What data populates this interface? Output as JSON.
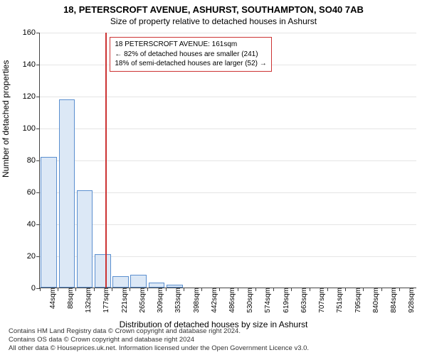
{
  "title": "18, PETERSCROFT AVENUE, ASHURST, SOUTHAMPTON, SO40 7AB",
  "subtitle": "Size of property relative to detached houses in Ashurst",
  "ylabel": "Number of detached properties",
  "xlabel": "Distribution of detached houses by size in Ashurst",
  "footer1": "Contains HM Land Registry data © Crown copyright and database right 2024.",
  "footer2": "Contains OS data © Crown copyright and database right 2024",
  "footer3": "All other data © Houseprices.uk.net. Information licensed under the Open Government Licence v3.0.",
  "chart": {
    "type": "bar",
    "ylim": [
      0,
      160
    ],
    "ytick_step": 20,
    "categories": [
      "44sqm",
      "88sqm",
      "132sqm",
      "177sqm",
      "221sqm",
      "265sqm",
      "309sqm",
      "353sqm",
      "398sqm",
      "442sqm",
      "486sqm",
      "530sqm",
      "574sqm",
      "619sqm",
      "663sqm",
      "707sqm",
      "751sqm",
      "795sqm",
      "840sqm",
      "884sqm",
      "928sqm"
    ],
    "values": [
      82,
      118,
      61,
      21,
      7,
      8,
      3,
      2,
      0,
      0,
      0,
      0,
      0,
      0,
      0,
      0,
      0,
      0,
      0,
      0,
      0
    ],
    "bar_fill": "#dce8f6",
    "bar_stroke": "#5b8fcf",
    "background": "#ffffff",
    "grid_color": "#e5e5e5",
    "axis_color": "#444444",
    "bar_width_ratio": 0.9,
    "marker": {
      "value_sqm": 161,
      "line_color": "#cc3333",
      "annotation_border": "#cc3333",
      "lines": [
        "18 PETERSCROFT AVENUE: 161sqm",
        "← 82% of detached houses are smaller (241)",
        "18% of semi-detached houses are larger (52) →"
      ]
    }
  }
}
